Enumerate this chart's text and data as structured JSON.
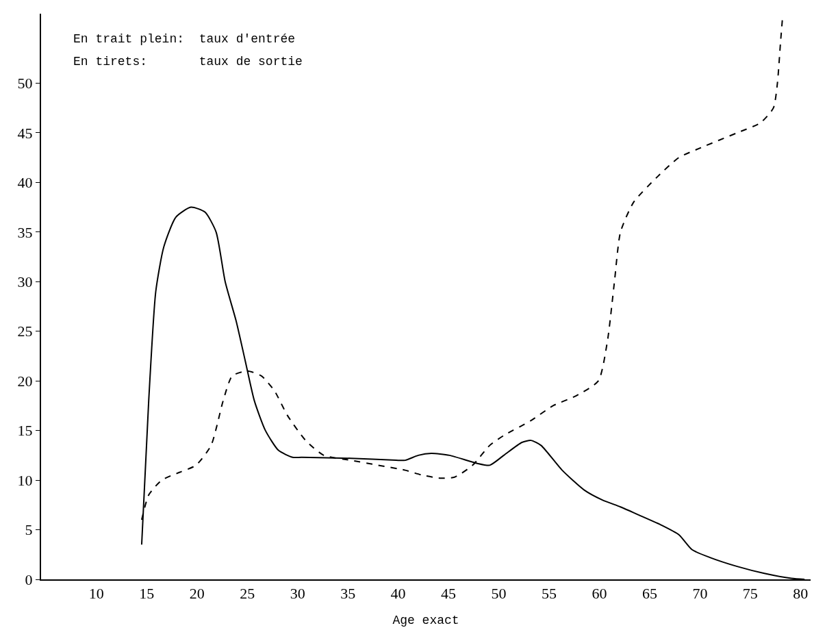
{
  "chart_data": {
    "type": "line",
    "xlabel": "Age exact",
    "annotations": [
      "En trait plein:  taux d'entrée",
      "En tirets:       taux de sortie"
    ],
    "xlim": [
      4.5,
      81
    ],
    "xticks": [
      10,
      15,
      20,
      25,
      30,
      35,
      40,
      45,
      50,
      55,
      60,
      65,
      70,
      75,
      80
    ],
    "ylim": [
      0,
      57
    ],
    "yticks": [
      0,
      5,
      10,
      15,
      20,
      25,
      30,
      35,
      40,
      45,
      50
    ],
    "series": [
      {
        "color": "#000000",
        "line_style": "solid",
        "x": [
          14.5,
          15.2,
          15.9,
          16.7,
          17.9,
          19.4,
          20.8,
          21.9,
          22.8,
          23.9,
          24.8,
          25.7,
          26.8,
          28.1,
          29.5,
          30.4,
          35.3,
          39.8,
          40.7,
          42.0,
          43.3,
          45.1,
          47.8,
          49.1,
          50.5,
          52.3,
          53.2,
          54.2,
          56.3,
          58.5,
          60.3,
          62.1,
          63.9,
          66.1,
          67.9,
          69.2,
          71.0,
          73.7,
          76.4,
          79.1,
          80.4
        ],
        "values": [
          3.5,
          18,
          29,
          33.5,
          36.5,
          37.5,
          37,
          35,
          30,
          26,
          22,
          18,
          15,
          13,
          12.3,
          12.3,
          12.2,
          12,
          12,
          12.5,
          12.7,
          12.5,
          11.7,
          11.5,
          12.5,
          13.8,
          14,
          13.5,
          11,
          9,
          8,
          7.3,
          6.5,
          5.5,
          4.5,
          3,
          2.2,
          1.3,
          0.6,
          0.1,
          0
        ]
      },
      {
        "color": "#000000",
        "line_style": "dashed",
        "x": [
          14.5,
          15.2,
          16.5,
          18.3,
          19.9,
          21.4,
          22.6,
          23.5,
          25.0,
          26.4,
          27.7,
          29.0,
          30.8,
          32.6,
          35.3,
          38.0,
          40.7,
          42.4,
          44.2,
          45.6,
          47.4,
          49.1,
          50.5,
          53.2,
          55.4,
          57.7,
          59.9,
          60.8,
          61.5,
          62.1,
          63.4,
          65.7,
          67.9,
          70.1,
          73.7,
          76.0,
          77.3,
          77.7,
          78.0,
          78.2
        ],
        "values": [
          6,
          8.5,
          10,
          10.8,
          11.5,
          13.5,
          18,
          20.5,
          21,
          20.5,
          19,
          16.5,
          14,
          12.5,
          12,
          11.5,
          11,
          10.5,
          10.2,
          10.3,
          11.5,
          13.5,
          14.5,
          16,
          17.5,
          18.5,
          20,
          24,
          30,
          35,
          38,
          40.5,
          42.5,
          43.5,
          45,
          46,
          47.5,
          50,
          54,
          56.5
        ]
      }
    ]
  }
}
